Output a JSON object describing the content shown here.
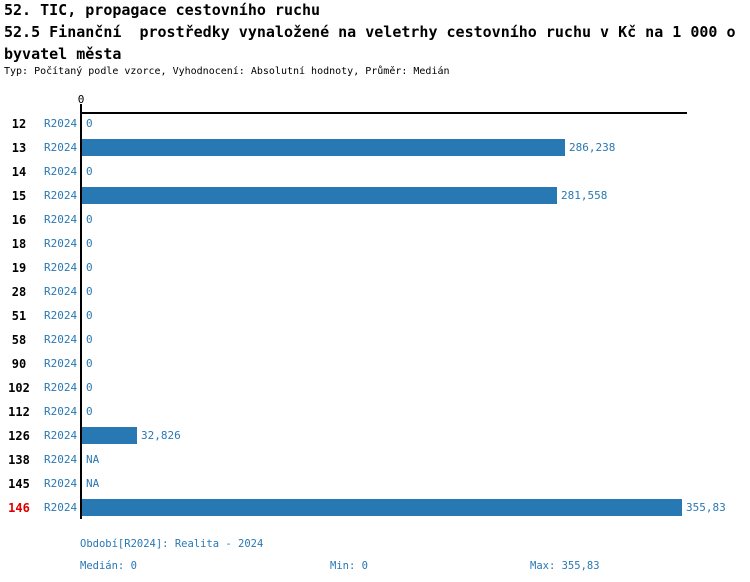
{
  "title": {
    "line1": "52. TIC, propagace cestovního ruchu",
    "line2": "52.5 Finanční  prostředky vynaložené na veletrhy cestovního ruchu v Kč na 1 000 o",
    "line3": "byvatel města",
    "meta": "Typ: Počítaný podle vzorce, Vyhodnocení: Absolutní hodnoty, Průměr: Medián"
  },
  "chart_data": {
    "type": "bar",
    "orientation": "horizontal",
    "period": "R2024",
    "categories": [
      "12",
      "13",
      "14",
      "15",
      "16",
      "18",
      "19",
      "28",
      "51",
      "58",
      "90",
      "102",
      "112",
      "126",
      "138",
      "145",
      "146"
    ],
    "values": [
      0,
      286.238,
      0,
      281.558,
      0,
      0,
      0,
      0,
      0,
      0,
      0,
      0,
      0,
      32.826,
      null,
      null,
      355.83
    ],
    "value_labels": [
      "0",
      "286,238",
      "0",
      "281,558",
      "0",
      "0",
      "0",
      "0",
      "0",
      "0",
      "0",
      "0",
      "0",
      "32,826",
      "NA",
      "NA",
      "355,83"
    ],
    "highlighted_category": "146",
    "legend_position": "none",
    "grid": false,
    "axis": {
      "tick_label": "0",
      "xmin": 0,
      "xmax": 355.83
    },
    "colors": {
      "bar": "#2878b4",
      "label": "#2878b4",
      "highlight": "#dd0000",
      "axis": "#000000"
    }
  },
  "footer": {
    "period_label": "Období[R2024]: Realita - 2024",
    "median": "Medián: 0",
    "min": "Min: 0",
    "max": "Max: 355,83"
  }
}
